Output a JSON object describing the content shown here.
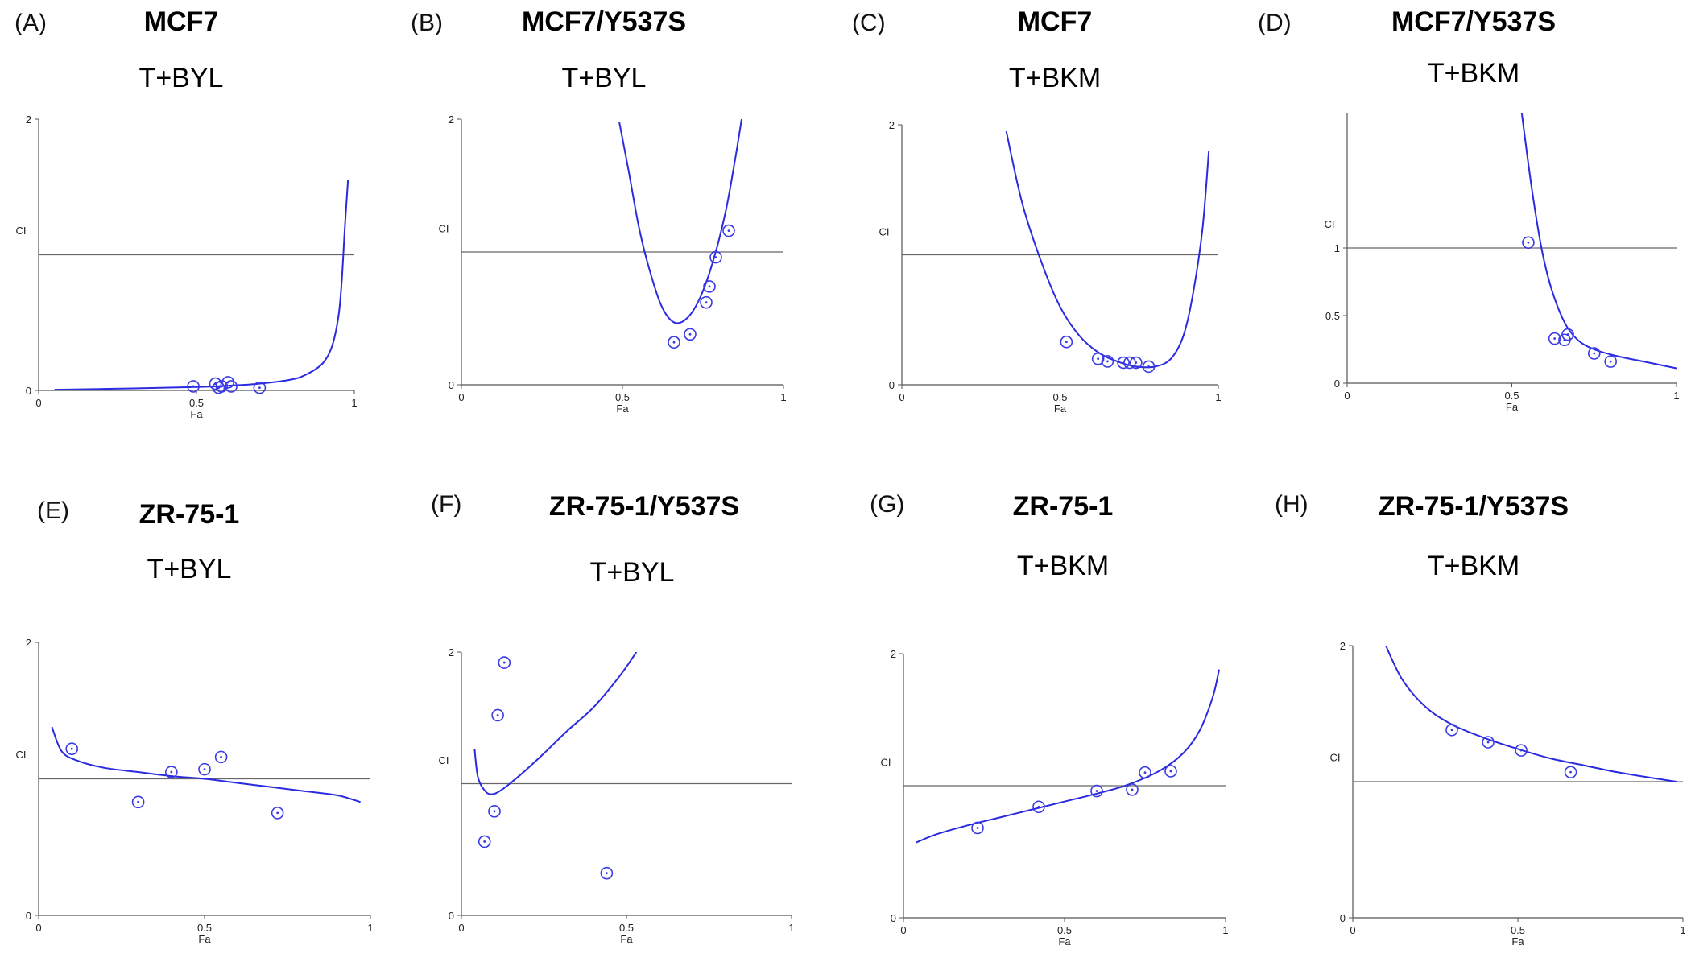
{
  "figure": {
    "colors": {
      "curve": "#2a2ae0",
      "points": "#3a3ae6",
      "axis": "#555555",
      "reference": "#666666",
      "text": "#111111"
    }
  },
  "chart_data": [
    {
      "type": "scatter",
      "panel": "(A)",
      "cell_line": "MCF7",
      "combination": "T+BYL",
      "xlabel": "Fa",
      "ylabel": "CI",
      "xlim": [
        0,
        1
      ],
      "ylim": [
        0,
        2
      ],
      "xticks": [
        "0",
        "0.5",
        "1"
      ],
      "yticks": [
        "0",
        "2"
      ],
      "reference_line": 1,
      "points": [
        [
          0.49,
          0.03
        ],
        [
          0.56,
          0.05
        ],
        [
          0.57,
          0.02
        ],
        [
          0.58,
          0.03
        ],
        [
          0.6,
          0.06
        ],
        [
          0.61,
          0.03
        ],
        [
          0.7,
          0.02
        ]
      ],
      "curve": [
        [
          0.05,
          0.005
        ],
        [
          0.3,
          0.015
        ],
        [
          0.5,
          0.025
        ],
        [
          0.6,
          0.035
        ],
        [
          0.7,
          0.05
        ],
        [
          0.8,
          0.08
        ],
        [
          0.85,
          0.12
        ],
        [
          0.9,
          0.2
        ],
        [
          0.93,
          0.33
        ],
        [
          0.95,
          0.55
        ],
        [
          0.96,
          0.8
        ],
        [
          0.97,
          1.2
        ],
        [
          0.98,
          1.55
        ]
      ]
    },
    {
      "type": "scatter",
      "panel": "(B)",
      "cell_line": "MCF7/Y537S",
      "combination": "T+BYL",
      "xlabel": "Fa",
      "ylabel": "CI",
      "xlim": [
        0,
        1
      ],
      "ylim": [
        0,
        2
      ],
      "xticks": [
        "0",
        "0.5",
        "1"
      ],
      "yticks": [
        "0",
        "2"
      ],
      "reference_line": 1,
      "points": [
        [
          0.66,
          0.32
        ],
        [
          0.71,
          0.38
        ],
        [
          0.76,
          0.62
        ],
        [
          0.77,
          0.74
        ],
        [
          0.79,
          0.96
        ],
        [
          0.83,
          1.16
        ]
      ],
      "curve": [
        [
          0.49,
          1.98
        ],
        [
          0.52,
          1.6
        ],
        [
          0.55,
          1.2
        ],
        [
          0.58,
          0.9
        ],
        [
          0.62,
          0.6
        ],
        [
          0.66,
          0.47
        ],
        [
          0.7,
          0.5
        ],
        [
          0.74,
          0.65
        ],
        [
          0.78,
          0.92
        ],
        [
          0.82,
          1.3
        ],
        [
          0.85,
          1.7
        ],
        [
          0.87,
          2.0
        ]
      ]
    },
    {
      "type": "scatter",
      "panel": "(C)",
      "cell_line": "MCF7",
      "combination": "T+BKM",
      "xlabel": "Fa",
      "ylabel": "CI",
      "xlim": [
        0,
        1
      ],
      "ylim": [
        0,
        2
      ],
      "xticks": [
        "0",
        "0.5",
        "1"
      ],
      "yticks": [
        "0",
        "2"
      ],
      "reference_line": 1,
      "points": [
        [
          0.52,
          0.33
        ],
        [
          0.62,
          0.2
        ],
        [
          0.65,
          0.18
        ],
        [
          0.7,
          0.17
        ],
        [
          0.72,
          0.17
        ],
        [
          0.74,
          0.17
        ],
        [
          0.78,
          0.14
        ]
      ],
      "curve": [
        [
          0.33,
          1.95
        ],
        [
          0.38,
          1.4
        ],
        [
          0.44,
          0.95
        ],
        [
          0.5,
          0.6
        ],
        [
          0.56,
          0.38
        ],
        [
          0.62,
          0.25
        ],
        [
          0.68,
          0.18
        ],
        [
          0.74,
          0.14
        ],
        [
          0.8,
          0.14
        ],
        [
          0.85,
          0.2
        ],
        [
          0.89,
          0.38
        ],
        [
          0.92,
          0.7
        ],
        [
          0.95,
          1.2
        ],
        [
          0.97,
          1.8
        ]
      ]
    },
    {
      "type": "scatter",
      "panel": "(D)",
      "cell_line": "MCF7/Y537S",
      "combination": "T+BKM",
      "xlabel": "Fa",
      "ylabel": "CI",
      "xlim": [
        0,
        1
      ],
      "ylim": [
        0,
        2
      ],
      "xticks": [
        "0",
        "0.5",
        "1"
      ],
      "yticks": [
        "0",
        "0.5",
        "1"
      ],
      "reference_line": 1,
      "points": [
        [
          0.55,
          1.04
        ],
        [
          0.63,
          0.33
        ],
        [
          0.66,
          0.32
        ],
        [
          0.67,
          0.36
        ],
        [
          0.75,
          0.22
        ],
        [
          0.8,
          0.16
        ]
      ],
      "curve": [
        [
          0.53,
          2.0
        ],
        [
          0.56,
          1.45
        ],
        [
          0.59,
          1.0
        ],
        [
          0.62,
          0.7
        ],
        [
          0.66,
          0.45
        ],
        [
          0.7,
          0.32
        ],
        [
          0.75,
          0.25
        ],
        [
          0.82,
          0.2
        ],
        [
          0.9,
          0.16
        ],
        [
          1.0,
          0.11
        ]
      ]
    },
    {
      "type": "scatter",
      "panel": "(E)",
      "cell_line": "ZR-75-1",
      "combination": "T+BYL",
      "xlabel": "Fa",
      "ylabel": "CI",
      "xlim": [
        0,
        1
      ],
      "ylim": [
        0,
        2
      ],
      "xticks": [
        "0",
        "0.5",
        "1"
      ],
      "yticks": [
        "0",
        "2"
      ],
      "reference_line": 1,
      "points": [
        [
          0.1,
          1.22
        ],
        [
          0.3,
          0.83
        ],
        [
          0.4,
          1.05
        ],
        [
          0.5,
          1.07
        ],
        [
          0.55,
          1.16
        ],
        [
          0.72,
          0.75
        ]
      ],
      "curve": [
        [
          0.04,
          1.38
        ],
        [
          0.07,
          1.2
        ],
        [
          0.12,
          1.13
        ],
        [
          0.2,
          1.08
        ],
        [
          0.3,
          1.05
        ],
        [
          0.4,
          1.02
        ],
        [
          0.5,
          1.0
        ],
        [
          0.6,
          0.97
        ],
        [
          0.7,
          0.94
        ],
        [
          0.8,
          0.91
        ],
        [
          0.9,
          0.88
        ],
        [
          0.97,
          0.83
        ]
      ]
    },
    {
      "type": "scatter",
      "panel": "(F)",
      "cell_line": "ZR-75-1/Y537S",
      "combination": "T+BYL",
      "xlabel": "Fa",
      "ylabel": "CI",
      "xlim": [
        0,
        1
      ],
      "ylim": [
        0,
        2
      ],
      "xticks": [
        "0",
        "0.5",
        "1"
      ],
      "yticks": [
        "0",
        "2"
      ],
      "reference_line": 1,
      "points": [
        [
          0.07,
          0.56
        ],
        [
          0.1,
          0.79
        ],
        [
          0.11,
          1.52
        ],
        [
          0.13,
          1.92
        ],
        [
          0.44,
          0.32
        ]
      ],
      "curve": [
        [
          0.04,
          1.26
        ],
        [
          0.05,
          1.05
        ],
        [
          0.07,
          0.95
        ],
        [
          0.09,
          0.92
        ],
        [
          0.12,
          0.95
        ],
        [
          0.18,
          1.07
        ],
        [
          0.25,
          1.23
        ],
        [
          0.32,
          1.4
        ],
        [
          0.4,
          1.58
        ],
        [
          0.48,
          1.82
        ],
        [
          0.53,
          2.0
        ]
      ]
    },
    {
      "type": "scatter",
      "panel": "(G)",
      "cell_line": "ZR-75-1",
      "combination": "T+BKM",
      "xlabel": "Fa",
      "ylabel": "CI",
      "xlim": [
        0,
        1
      ],
      "ylim": [
        0,
        2
      ],
      "xticks": [
        "0",
        "0.5",
        "1"
      ],
      "yticks": [
        "0",
        "2"
      ],
      "reference_line": 1,
      "points": [
        [
          0.23,
          0.68
        ],
        [
          0.42,
          0.84
        ],
        [
          0.6,
          0.96
        ],
        [
          0.71,
          0.97
        ],
        [
          0.75,
          1.1
        ],
        [
          0.83,
          1.11
        ]
      ],
      "curve": [
        [
          0.04,
          0.57
        ],
        [
          0.1,
          0.63
        ],
        [
          0.2,
          0.7
        ],
        [
          0.3,
          0.76
        ],
        [
          0.4,
          0.82
        ],
        [
          0.5,
          0.88
        ],
        [
          0.6,
          0.94
        ],
        [
          0.7,
          1.01
        ],
        [
          0.8,
          1.12
        ],
        [
          0.87,
          1.25
        ],
        [
          0.92,
          1.42
        ],
        [
          0.96,
          1.67
        ],
        [
          0.98,
          1.88
        ]
      ]
    },
    {
      "type": "scatter",
      "panel": "(H)",
      "cell_line": "ZR-75-1/Y537S",
      "combination": "T+BKM",
      "xlabel": "Fa",
      "ylabel": "CI",
      "xlim": [
        0,
        1
      ],
      "ylim": [
        0,
        2
      ],
      "xticks": [
        "0",
        "0.5",
        "1"
      ],
      "yticks": [
        "0",
        "2"
      ],
      "reference_line": 1,
      "points": [
        [
          0.3,
          1.38
        ],
        [
          0.41,
          1.29
        ],
        [
          0.51,
          1.23
        ],
        [
          0.66,
          1.07
        ]
      ],
      "curve": [
        [
          0.1,
          2.0
        ],
        [
          0.15,
          1.75
        ],
        [
          0.22,
          1.55
        ],
        [
          0.3,
          1.42
        ],
        [
          0.4,
          1.32
        ],
        [
          0.5,
          1.24
        ],
        [
          0.6,
          1.17
        ],
        [
          0.7,
          1.12
        ],
        [
          0.8,
          1.07
        ],
        [
          0.9,
          1.03
        ],
        [
          0.98,
          1.0
        ]
      ]
    }
  ]
}
